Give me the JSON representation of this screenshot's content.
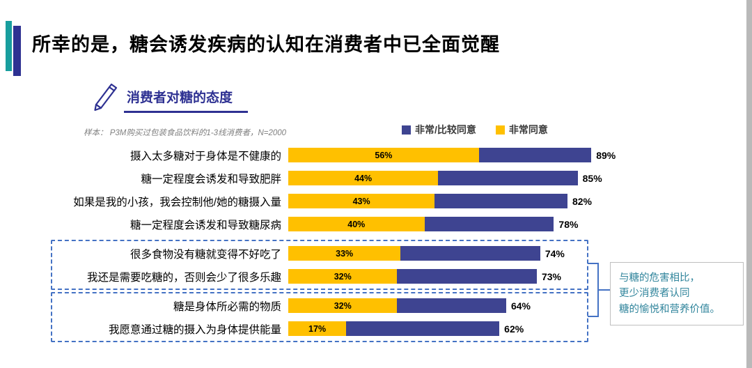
{
  "slide": {
    "title": "所幸的是，糖会诱发疾病的认知在消费者中已全面觉醒"
  },
  "chart": {
    "header": "消费者对糖的态度",
    "sample_note": "样本： P3M购买过包装食品饮料的1-3线消费者，N=2000",
    "legend": [
      {
        "label": "非常/比较同意",
        "color": "#3e4491"
      },
      {
        "label": "非常同意",
        "color": "#ffc000"
      }
    ],
    "axis_max": 100,
    "rows": [
      {
        "label": "摄入太多糖对于身体是不健康的",
        "strongly_agree": 56,
        "strongly_agree_label": "56%",
        "total": 89,
        "total_label": "89%"
      },
      {
        "label": "糖一定程度会诱发和导致肥胖",
        "strongly_agree": 44,
        "strongly_agree_label": "44%",
        "total": 85,
        "total_label": "85%"
      },
      {
        "label": "如果是我的小孩，我会控制他/她的糖摄入量",
        "strongly_agree": 43,
        "strongly_agree_label": "43%",
        "total": 82,
        "total_label": "82%"
      },
      {
        "label": "糖一定程度会诱发和导致糖尿病",
        "strongly_agree": 40,
        "strongly_agree_label": "40%",
        "total": 78,
        "total_label": "78%"
      },
      {
        "label": "很多食物没有糖就变得不好吃了",
        "strongly_agree": 33,
        "strongly_agree_label": "33%",
        "total": 74,
        "total_label": "74%"
      },
      {
        "label": "我还是需要吃糖的，否则会少了很多乐趣",
        "strongly_agree": 32,
        "strongly_agree_label": "32%",
        "total": 73,
        "total_label": "73%"
      },
      {
        "label": "糖是身体所必需的物质",
        "strongly_agree": 32,
        "strongly_agree_label": "32%",
        "total": 64,
        "total_label": "64%"
      },
      {
        "label": "我愿意通过糖的摄入为身体提供能量",
        "strongly_agree": 17,
        "strongly_agree_label": "17%",
        "total": 62,
        "total_label": "62%"
      }
    ]
  },
  "callout": {
    "lines": [
      "与糖的危害相比，",
      "更少消费者认同",
      "糖的愉悦和营养价值。"
    ]
  },
  "chart_data": {
    "type": "bar",
    "orientation": "horizontal",
    "stacked": true,
    "title": "消费者对糖的态度",
    "subtitle": "样本： P3M购买过包装食品饮料的1-3线消费者，N=2000",
    "categories": [
      "摄入太多糖对于身体是不健康的",
      "糖一定程度会诱发和导致肥胖",
      "如果是我的小孩，我会控制他/她的糖摄入量",
      "糖一定程度会诱发和导致糖尿病",
      "很多食物没有糖就变得不好吃了",
      "我还是需要吃糖的，否则会少了很多乐趣",
      "糖是身体所必需的物质",
      "我愿意通过糖的摄入为身体提供能量"
    ],
    "series": [
      {
        "name": "非常同意",
        "color": "#ffc000",
        "values": [
          56,
          44,
          43,
          40,
          33,
          32,
          32,
          17
        ]
      },
      {
        "name": "非常/比较同意",
        "color": "#3e4491",
        "values": [
          89,
          85,
          82,
          78,
          74,
          73,
          64,
          62
        ]
      }
    ],
    "xlim": [
      0,
      100
    ],
    "legend_position": "top-right",
    "grid": false,
    "highlight_groups": [
      {
        "rows": [
          4,
          5
        ],
        "style": "dashed-box"
      },
      {
        "rows": [
          6,
          7
        ],
        "style": "dashed-box"
      }
    ],
    "annotation": "与糖的危害相比，更少消费者认同糖的愉悦和营养价值。"
  }
}
